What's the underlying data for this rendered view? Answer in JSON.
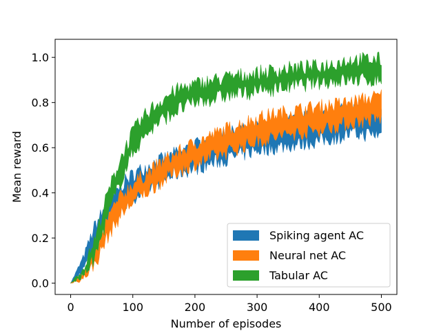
{
  "chart_data": {
    "type": "area",
    "xlabel": "Number of episodes",
    "ylabel": "Mean reward",
    "xlim": [
      -25,
      525
    ],
    "ylim": [
      -0.05,
      1.08
    ],
    "xticks": [
      0,
      100,
      200,
      300,
      400,
      500
    ],
    "yticks": [
      0.0,
      0.2,
      0.4,
      0.6,
      0.8,
      1.0
    ],
    "xtick_labels": [
      "0",
      "100",
      "200",
      "300",
      "400",
      "500"
    ],
    "ytick_labels": [
      "0.0",
      "0.2",
      "0.4",
      "0.6",
      "0.8",
      "1.0"
    ],
    "grid": false,
    "legend_position": "lower-right",
    "series": [
      {
        "name": "Spiking agent AC",
        "color": "#1f77b4",
        "x": [
          0,
          20,
          40,
          60,
          80,
          100,
          125,
          150,
          175,
          200,
          250,
          300,
          350,
          400,
          450,
          500
        ],
        "lower": [
          0.0,
          0.06,
          0.18,
          0.27,
          0.33,
          0.38,
          0.42,
          0.46,
          0.49,
          0.51,
          0.55,
          0.59,
          0.61,
          0.63,
          0.66,
          0.66
        ],
        "upper": [
          0.0,
          0.11,
          0.26,
          0.35,
          0.43,
          0.48,
          0.52,
          0.55,
          0.58,
          0.61,
          0.66,
          0.69,
          0.72,
          0.74,
          0.77,
          0.78
        ]
      },
      {
        "name": "Neural net AC",
        "color": "#ff7f0e",
        "x": [
          0,
          20,
          40,
          60,
          80,
          100,
          125,
          150,
          175,
          200,
          250,
          300,
          350,
          400,
          450,
          500
        ],
        "lower": [
          0.0,
          0.02,
          0.09,
          0.21,
          0.3,
          0.36,
          0.41,
          0.46,
          0.5,
          0.53,
          0.58,
          0.63,
          0.66,
          0.68,
          0.71,
          0.73
        ],
        "upper": [
          0.0,
          0.05,
          0.15,
          0.29,
          0.38,
          0.44,
          0.49,
          0.54,
          0.58,
          0.62,
          0.68,
          0.73,
          0.76,
          0.78,
          0.8,
          0.83
        ]
      },
      {
        "name": "Tabular AC",
        "color": "#2ca02c",
        "x": [
          0,
          20,
          40,
          60,
          80,
          100,
          125,
          150,
          175,
          200,
          250,
          300,
          350,
          400,
          450,
          500
        ],
        "lower": [
          0.0,
          0.03,
          0.12,
          0.3,
          0.45,
          0.58,
          0.67,
          0.73,
          0.77,
          0.8,
          0.83,
          0.85,
          0.87,
          0.89,
          0.9,
          0.9
        ],
        "upper": [
          0.0,
          0.06,
          0.2,
          0.4,
          0.55,
          0.67,
          0.76,
          0.82,
          0.86,
          0.88,
          0.91,
          0.93,
          0.95,
          0.96,
          0.99,
          0.99
        ]
      }
    ]
  }
}
